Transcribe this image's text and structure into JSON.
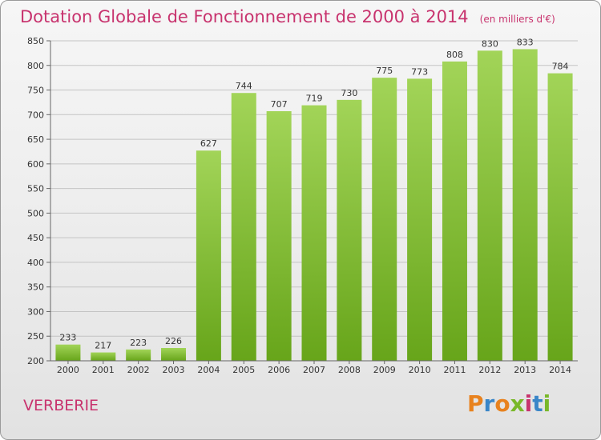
{
  "title": "Dotation Globale de Fonctionnement de 2000 à 2014",
  "unit": "(en milliers d'€)",
  "commune": "VERBERIE",
  "logo": {
    "letters": [
      "P",
      "r",
      "o",
      "x",
      "i",
      "t",
      "i"
    ],
    "colors": [
      "#e8821e",
      "#3a86c8",
      "#e8821e",
      "#79b829",
      "#c8336e",
      "#3a86c8",
      "#79b829"
    ]
  },
  "colors": {
    "title": "#c8336e",
    "bar_light": "#a2d458",
    "bar_dark": "#67a51a"
  },
  "chart_data": {
    "type": "bar",
    "categories": [
      "2000",
      "2001",
      "2002",
      "2003",
      "2004",
      "2005",
      "2006",
      "2007",
      "2008",
      "2009",
      "2010",
      "2011",
      "2012",
      "2013",
      "2014"
    ],
    "values": [
      233,
      217,
      223,
      226,
      627,
      744,
      707,
      719,
      730,
      775,
      773,
      808,
      830,
      833,
      784
    ],
    "ylim": [
      200,
      850
    ],
    "yticks": [
      200,
      250,
      300,
      350,
      400,
      450,
      500,
      550,
      600,
      650,
      700,
      750,
      800,
      850
    ],
    "grid": true
  }
}
